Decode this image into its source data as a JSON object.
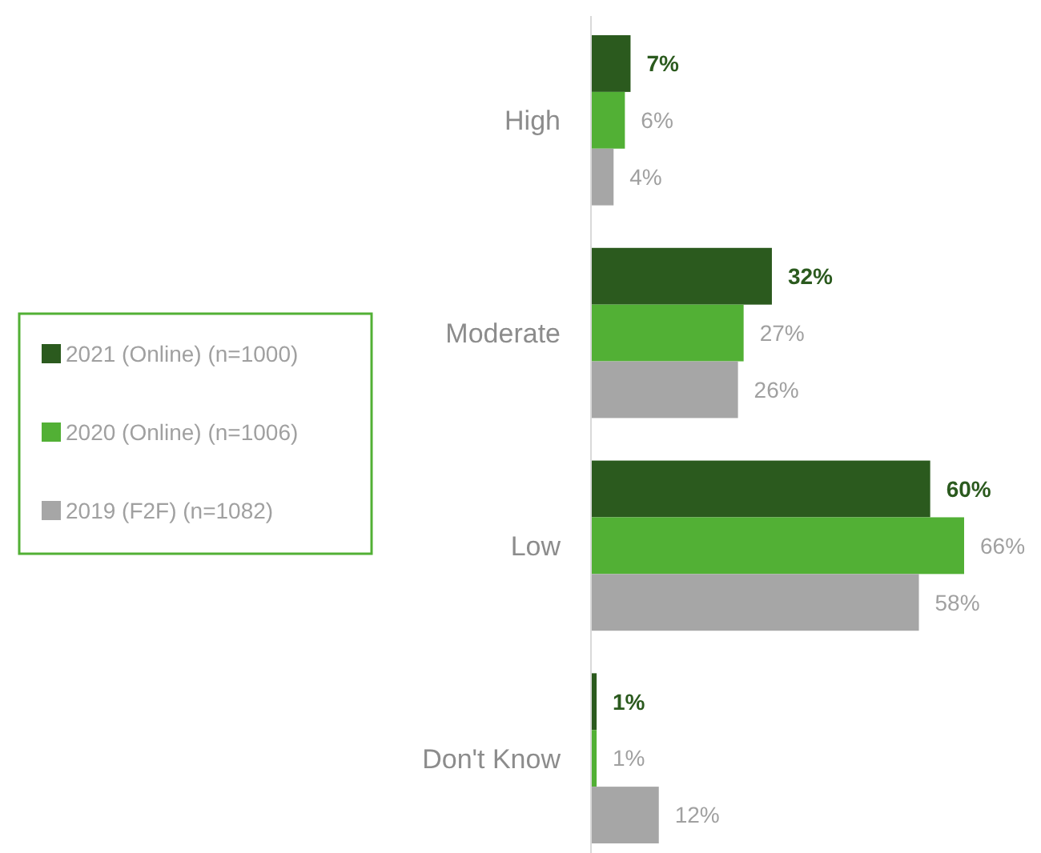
{
  "chart_data": {
    "type": "bar",
    "orientation": "horizontal",
    "relative": false,
    "categories": [
      "High",
      "Moderate",
      "Low",
      "Don't Know"
    ],
    "series": [
      {
        "name": "2021 (Online) (n=1000)",
        "color": "#2b5a1e",
        "values": [
          7,
          32,
          60,
          1
        ],
        "value_labels": [
          "7%",
          "32%",
          "60%",
          "1%"
        ]
      },
      {
        "name": "2020 (Online) (n=1006)",
        "color": "#52b035",
        "values": [
          6,
          27,
          66,
          1
        ],
        "value_labels": [
          "6%",
          "27%",
          "66%",
          "1%"
        ]
      },
      {
        "name": "2019 (F2F) (n=1082)",
        "color": "#a6a6a6",
        "values": [
          4,
          26,
          58,
          12
        ],
        "value_labels": [
          "4%",
          "26%",
          "58%",
          "12%"
        ]
      }
    ],
    "legend": "left"
  }
}
